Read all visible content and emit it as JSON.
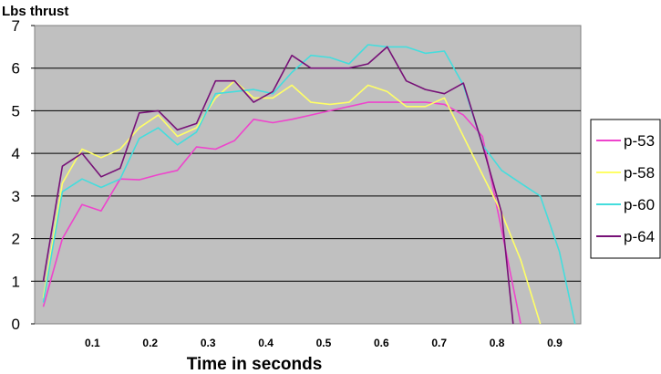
{
  "chart_data": {
    "type": "line",
    "title": "",
    "ylabel": "Lbs thrust",
    "xlabel": "Time in seconds",
    "ylim": [
      0,
      7
    ],
    "y_ticks": [
      "0",
      "1",
      "2",
      "3",
      "4",
      "5",
      "6",
      "7"
    ],
    "x_ticks": [
      "0.1",
      "0.2",
      "0.3",
      "0.4",
      "0.5",
      "0.6",
      "0.7",
      "0.8",
      "0.9"
    ],
    "grid": "horizontal",
    "legend_position": "right",
    "plot_background": "#c0c0c0",
    "series": [
      {
        "name": "p-53",
        "color": "#ee44cc",
        "points": [
          [
            0.015,
            0.4
          ],
          [
            0.048,
            2.0
          ],
          [
            0.082,
            2.8
          ],
          [
            0.115,
            2.65
          ],
          [
            0.148,
            3.4
          ],
          [
            0.181,
            3.38
          ],
          [
            0.214,
            3.5
          ],
          [
            0.247,
            3.6
          ],
          [
            0.28,
            4.15
          ],
          [
            0.313,
            4.1
          ],
          [
            0.346,
            4.3
          ],
          [
            0.379,
            4.8
          ],
          [
            0.412,
            4.72
          ],
          [
            0.445,
            4.8
          ],
          [
            0.478,
            4.9
          ],
          [
            0.511,
            5.0
          ],
          [
            0.544,
            5.1
          ],
          [
            0.577,
            5.2
          ],
          [
            0.61,
            5.2
          ],
          [
            0.643,
            5.2
          ],
          [
            0.676,
            5.2
          ],
          [
            0.709,
            5.15
          ],
          [
            0.742,
            4.9
          ],
          [
            0.775,
            4.4
          ],
          [
            0.808,
            2.2
          ],
          [
            0.841,
            0.0
          ]
        ]
      },
      {
        "name": "p-58",
        "color": "#ffff66",
        "points": [
          [
            0.015,
            0.6
          ],
          [
            0.048,
            3.3
          ],
          [
            0.082,
            4.1
          ],
          [
            0.115,
            3.9
          ],
          [
            0.148,
            4.1
          ],
          [
            0.181,
            4.6
          ],
          [
            0.214,
            4.9
          ],
          [
            0.247,
            4.4
          ],
          [
            0.28,
            4.6
          ],
          [
            0.313,
            5.3
          ],
          [
            0.346,
            5.7
          ],
          [
            0.379,
            5.3
          ],
          [
            0.412,
            5.3
          ],
          [
            0.445,
            5.6
          ],
          [
            0.478,
            5.2
          ],
          [
            0.511,
            5.15
          ],
          [
            0.544,
            5.2
          ],
          [
            0.577,
            5.6
          ],
          [
            0.61,
            5.45
          ],
          [
            0.643,
            5.1
          ],
          [
            0.676,
            5.1
          ],
          [
            0.709,
            5.3
          ],
          [
            0.742,
            4.4
          ],
          [
            0.775,
            3.5
          ],
          [
            0.808,
            2.6
          ],
          [
            0.841,
            1.5
          ],
          [
            0.875,
            0.0
          ]
        ]
      },
      {
        "name": "p-60",
        "color": "#44dddd",
        "points": [
          [
            0.015,
            0.5
          ],
          [
            0.048,
            3.1
          ],
          [
            0.082,
            3.4
          ],
          [
            0.115,
            3.2
          ],
          [
            0.148,
            3.4
          ],
          [
            0.181,
            4.35
          ],
          [
            0.214,
            4.6
          ],
          [
            0.247,
            4.2
          ],
          [
            0.28,
            4.5
          ],
          [
            0.313,
            5.4
          ],
          [
            0.346,
            5.45
          ],
          [
            0.379,
            5.5
          ],
          [
            0.412,
            5.4
          ],
          [
            0.445,
            5.9
          ],
          [
            0.478,
            6.3
          ],
          [
            0.511,
            6.25
          ],
          [
            0.544,
            6.1
          ],
          [
            0.577,
            6.55
          ],
          [
            0.61,
            6.5
          ],
          [
            0.643,
            6.5
          ],
          [
            0.676,
            6.35
          ],
          [
            0.709,
            6.4
          ],
          [
            0.742,
            5.6
          ],
          [
            0.775,
            4.2
          ],
          [
            0.808,
            3.6
          ],
          [
            0.841,
            3.3
          ],
          [
            0.875,
            3.0
          ],
          [
            0.908,
            1.7
          ],
          [
            0.935,
            0.0
          ]
        ]
      },
      {
        "name": "p-64",
        "color": "#771177",
        "points": [
          [
            0.015,
            1.0
          ],
          [
            0.048,
            3.7
          ],
          [
            0.082,
            4.0
          ],
          [
            0.115,
            3.45
          ],
          [
            0.148,
            3.65
          ],
          [
            0.181,
            4.95
          ],
          [
            0.214,
            5.0
          ],
          [
            0.247,
            4.55
          ],
          [
            0.28,
            4.7
          ],
          [
            0.313,
            5.7
          ],
          [
            0.346,
            5.7
          ],
          [
            0.379,
            5.2
          ],
          [
            0.412,
            5.45
          ],
          [
            0.445,
            6.3
          ],
          [
            0.478,
            6.0
          ],
          [
            0.511,
            6.0
          ],
          [
            0.544,
            6.0
          ],
          [
            0.577,
            6.1
          ],
          [
            0.61,
            6.5
          ],
          [
            0.643,
            5.7
          ],
          [
            0.676,
            5.5
          ],
          [
            0.709,
            5.4
          ],
          [
            0.742,
            5.65
          ],
          [
            0.775,
            4.2
          ],
          [
            0.808,
            2.6
          ],
          [
            0.828,
            0.0
          ]
        ]
      }
    ]
  }
}
